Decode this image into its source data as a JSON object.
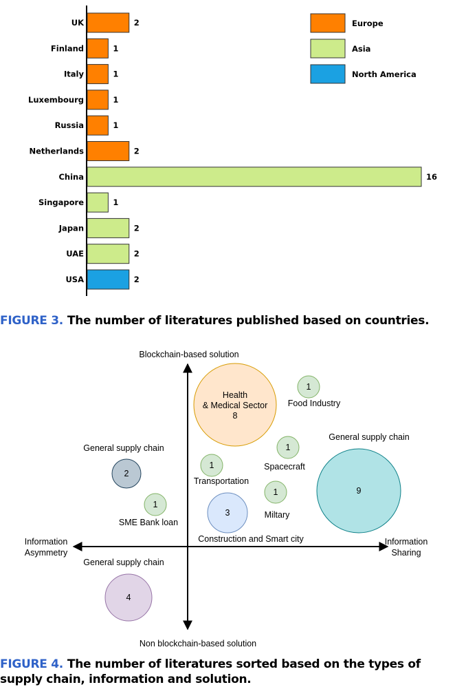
{
  "figure3": {
    "caption_label": "FIGURE 3.",
    "caption_text": "The number of literatures published based on countries.",
    "chart_data": {
      "type": "bar",
      "orientation": "horizontal",
      "categories": [
        "UK",
        "Finland",
        "Italy",
        "Luxembourg",
        "Russia",
        "Netherlands",
        "China",
        "Singapore",
        "Japan",
        "UAE",
        "USA"
      ],
      "values": [
        2,
        1,
        1,
        1,
        1,
        2,
        16,
        1,
        2,
        2,
        2
      ],
      "regions": [
        "Europe",
        "Europe",
        "Europe",
        "Europe",
        "Europe",
        "Europe",
        "Asia",
        "Asia",
        "Asia",
        "Asia",
        "North America"
      ],
      "legend": [
        {
          "name": "Europe",
          "color": "#ff8000"
        },
        {
          "name": "Asia",
          "color": "#cdeb8b"
        },
        {
          "name": "North America",
          "color": "#1ba1e2"
        }
      ],
      "legend_position": "top-right",
      "xlim": [
        0,
        16
      ],
      "grid": false
    }
  },
  "figure4": {
    "caption_label": "FIGURE 4.",
    "caption_text": "The number of literatures sorted based on the types of supply chain, information and solution.",
    "chart_data": {
      "type": "bubble",
      "axes": {
        "top": "Blockchain-based solution",
        "bottom": "Non blockchain-based solution",
        "left": [
          "Information",
          "Asymmetry"
        ],
        "right": [
          "Information",
          "Sharing"
        ]
      },
      "bubbles": [
        {
          "label": [
            "Health",
            "& Medical Sector"
          ],
          "value": 8,
          "quadrant": "top-right",
          "color": "#ffe6cc"
        },
        {
          "label": [
            "Food Industry"
          ],
          "value": 1,
          "quadrant": "top-right",
          "color": "#d5e8d4"
        },
        {
          "label": [
            "General supply chain"
          ],
          "value": 9,
          "quadrant": "top-right",
          "color": "#b0e3e6"
        },
        {
          "label": [
            "Spacecraft"
          ],
          "value": 1,
          "quadrant": "top-right",
          "color": "#d5e8d4"
        },
        {
          "label": [
            "Transportation"
          ],
          "value": 1,
          "quadrant": "top-right",
          "color": "#d5e8d4"
        },
        {
          "label": [
            "Miltary"
          ],
          "value": 1,
          "quadrant": "top-right",
          "color": "#d5e8d4"
        },
        {
          "label": [
            "Construction and Smart city"
          ],
          "value": 3,
          "quadrant": "top-right",
          "color": "#dae8fc"
        },
        {
          "label": [
            "General supply chain"
          ],
          "value": 2,
          "quadrant": "top-left",
          "color": "#bac8d3"
        },
        {
          "label": [
            "SME Bank loan"
          ],
          "value": 1,
          "quadrant": "top-left",
          "color": "#d5e8d4"
        },
        {
          "label": [
            "General supply chain"
          ],
          "value": 4,
          "quadrant": "bottom-left",
          "color": "#e1d5e7"
        }
      ]
    }
  }
}
